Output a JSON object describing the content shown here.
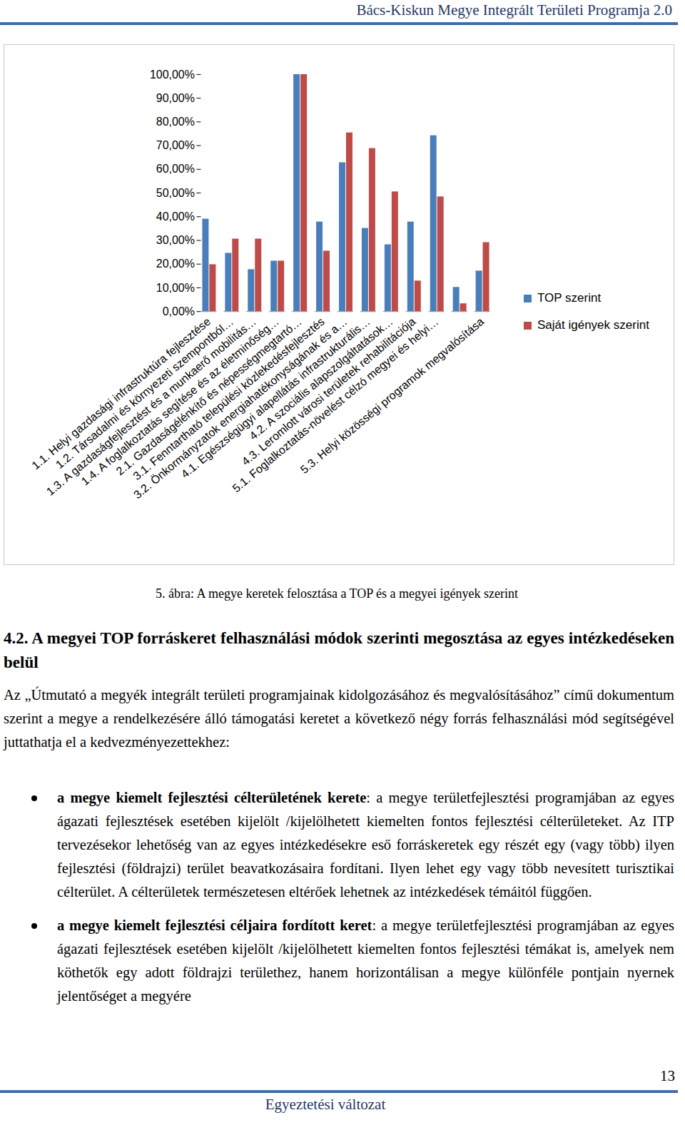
{
  "header": {
    "title": "Bács-Kiskun Megye Integrált Területi Programja 2.0"
  },
  "chart_data": {
    "type": "bar",
    "categories": [
      "1.1. Helyi gazdasági infrastruktúra fejlesztése",
      "1.2. Társadalmi és környezeti szempontból…",
      "1.3. A gazdaságfejlesztést és a munkaerő mobilitás…",
      "1.4. A foglalkoztatás segítése és az életminőség…",
      "2.1. Gazdaságélénkítő és népességmegtartó…",
      "3.1. Fenntartható települési közlekedésfejlesztés",
      "3.2. Önkormányzatok energiahatékonyságának és a…",
      "4.1. Egészségügyi alapellátás infrastrukturális…",
      "4.2. A szociális alapszolgáltatások…",
      "4.3. Leromlott városi területek rehabilitációja",
      "5.1. Foglalkoztatás-növelést célzó megyei és helyi…",
      null,
      "5.3. Helyi közösségi programok megvalósítása"
    ],
    "series": [
      {
        "name": "TOP szerint",
        "color": "#4a7ebb",
        "values": [
          39,
          24.6,
          17.7,
          21.3,
          100,
          37.8,
          62.8,
          35.1,
          28.2,
          37.8,
          74.2,
          10.2,
          17.1
        ]
      },
      {
        "name": "Saját igények szerint",
        "color": "#be4b48",
        "values": [
          19.8,
          30.6,
          30.6,
          21.3,
          100,
          25.5,
          75.4,
          68.8,
          50.5,
          12.9,
          48.4,
          3.3,
          29.1
        ]
      }
    ],
    "ylim": [
      0,
      100
    ],
    "yticks": [
      {
        "value": 0,
        "label": "0,00%"
      },
      {
        "value": 10,
        "label": "10,00%"
      },
      {
        "value": 20,
        "label": "20,00%"
      },
      {
        "value": 30,
        "label": "30,00%"
      },
      {
        "value": 40,
        "label": "40,00%"
      },
      {
        "value": 50,
        "label": "50,00%"
      },
      {
        "value": 60,
        "label": "60,00%"
      },
      {
        "value": 70,
        "label": "70,00%"
      },
      {
        "value": 80,
        "label": "80,00%"
      },
      {
        "value": 90,
        "label": "90,00%"
      },
      {
        "value": 100,
        "label": "100,00%"
      }
    ],
    "grid": false,
    "legend": "right"
  },
  "caption": "5. ábra: A megye keretek felosztása a TOP és a megyei igények szerint",
  "section": {
    "heading": "4.2. A megyei TOP forráskeret felhasználási módok szerinti megosztása az egyes intézkedéseken belül",
    "paragraph": "Az „Útmutató a megyék integrált területi programjainak kidolgozásához és megvalósításához” című dokumentum szerint a megye a rendelkezésére álló támogatási keretet a következő négy forrás felhasználási mód segítségével juttathatja el a kedvezményezettekhez:",
    "bullets": [
      {
        "bold": "a megye kiemelt fejlesztési célterületének kerete",
        "text": ": a megye területfejlesztési programjában az egyes ágazati fejlesztések esetében kijelölt /kijelölhetett kiemelten fontos fejlesztési célterületeket. Az ITP tervezésekor lehetőség van az egyes intézkedésekre eső forráskeretek egy részét egy (vagy több) ilyen fejlesztési (földrajzi) terület beavatkozásaira fordítani. Ilyen lehet egy vagy több nevesített turisztikai célterület. A célterületek természetesen eltérőek lehetnek az intézkedések témáitól függően."
      },
      {
        "bold": "a megye kiemelt fejlesztési céljaira fordított keret",
        "text": ": a megye területfejlesztési programjában az egyes ágazati fejlesztések esetében kijelölt /kijelölhetett kiemelten fontos fejlesztési témákat is, amelyek nem köthetők egy adott földrajzi területhez, hanem horizontálisan a megye különféle pontjain nyernek jelentőséget a megyére"
      }
    ]
  },
  "footer": {
    "page_number": "13",
    "text": "Egyeztetési változat"
  }
}
